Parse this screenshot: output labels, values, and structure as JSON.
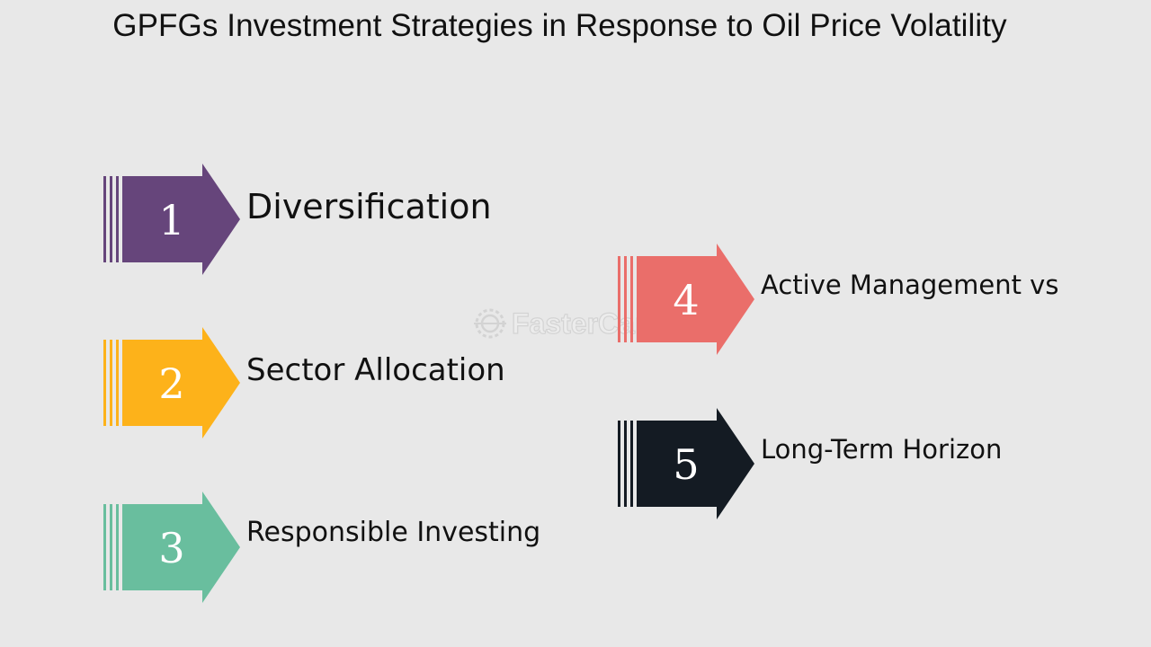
{
  "title": "GPFGs Investment Strategies in Response to Oil Price Volatility",
  "watermark": {
    "text": "FasterCapital",
    "icon": "gear-icon"
  },
  "steps": [
    {
      "number": "1",
      "label": "Diversification",
      "color": "#66457b"
    },
    {
      "number": "2",
      "label": "Sector Allocation",
      "color": "#fdb21a"
    },
    {
      "number": "3",
      "label": "Responsible Investing",
      "color": "#69be9e"
    },
    {
      "number": "4",
      "label": "Active Management vs",
      "color": "#ea6e6a"
    },
    {
      "number": "5",
      "label": "Long-Term Horizon",
      "color": "#141b23"
    }
  ]
}
